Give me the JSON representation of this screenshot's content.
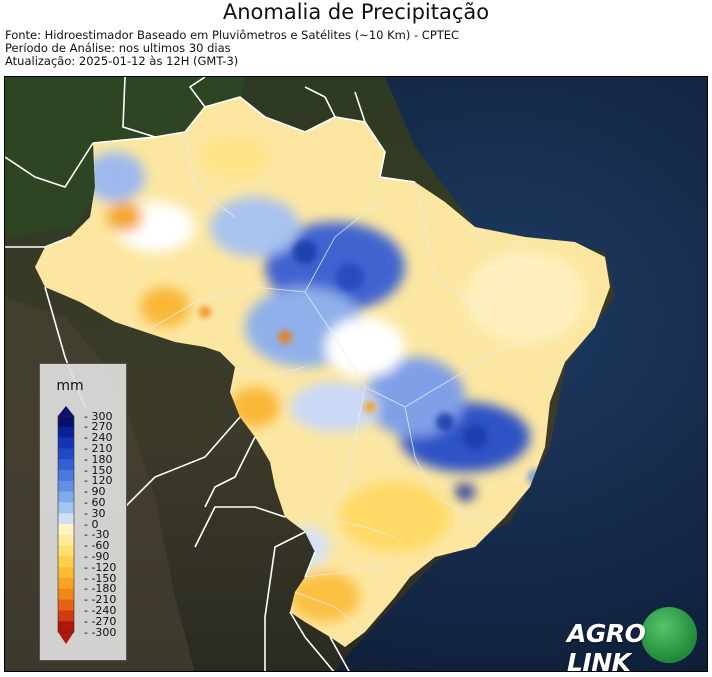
{
  "header": {
    "title": "Anomalia de Precipitação",
    "source": "Fonte: Hidroestimador Baseado em Pluviômetros e Satélites (~10 Km) - CPTEC",
    "period": "Período de Análise: nos ultimos 30 dias",
    "updated": "Atualização: 2025-01-12 às 12H (GMT-3)"
  },
  "legend": {
    "unit": "mm",
    "ticks": [
      "300",
      "270",
      "240",
      "210",
      "180",
      "150",
      "120",
      "90",
      "60",
      "30",
      "0",
      "-30",
      "-60",
      "-90",
      "-120",
      "-150",
      "-180",
      "-210",
      "-240",
      "-270",
      "-300"
    ],
    "colors": {
      "300": "#08106a",
      "270": "#0b1f96",
      "240": "#1534b3",
      "210": "#2449c7",
      "180": "#3560d2",
      "150": "#4a78dc",
      "120": "#6290e3",
      "90": "#80aaeb",
      "60": "#a5c4f2",
      "30": "#cfdff8",
      "0": "#ffffff",
      "-30": "#fff5c8",
      "-60": "#ffeb99",
      "-90": "#ffdf70",
      "-120": "#ffcf4d",
      "-150": "#fdbb32",
      "-180": "#f9a324",
      "-210": "#f2861a",
      "-240": "#e66214",
      "-270": "#d13b10",
      "-300": "#b0160c"
    }
  },
  "logo": {
    "text_left": "AGRO",
    "text_right": "LINK"
  }
}
